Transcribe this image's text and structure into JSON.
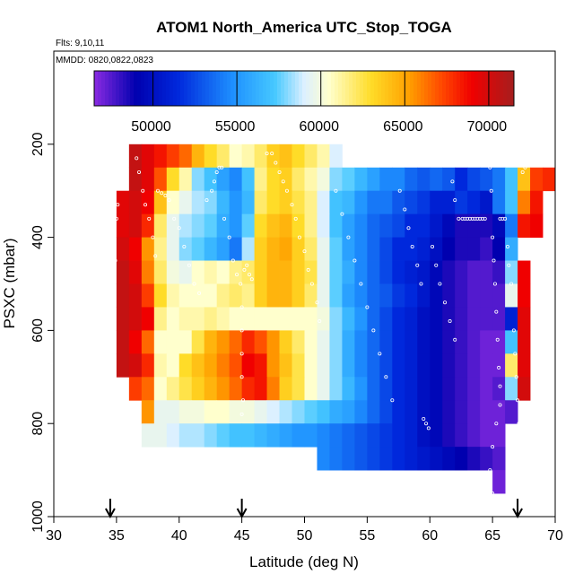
{
  "chart_data": {
    "type": "heatmap",
    "title": "ATOM1 North_America UTC_Stop_TOGA",
    "annotations": [
      "Flts: 9,10,11",
      "MMDD: 0820,0822,0823"
    ],
    "xlabel": "Latitude (deg N)",
    "ylabel": "PSXC (mbar)",
    "xlim": [
      30,
      70
    ],
    "ylim": [
      1000,
      0
    ],
    "x_ticks": [
      "30",
      "35",
      "40",
      "45",
      "50",
      "55",
      "60",
      "65",
      "70"
    ],
    "y_ticks": [
      "200",
      "400",
      "600",
      "800",
      "1000"
    ],
    "colorbar": {
      "range": [
        46500,
        71500
      ],
      "tick_labels": [
        "50000",
        "55000",
        "60000",
        "65000",
        "70000"
      ],
      "tick_values": [
        50000,
        55000,
        60000,
        65000,
        70000
      ]
    },
    "arrow_latitudes": [
      34.5,
      45,
      67
    ],
    "x_edges": [
      35,
      36,
      37,
      38,
      39,
      40,
      41,
      42,
      43,
      44,
      45,
      46,
      47,
      48,
      49,
      50,
      51,
      52,
      53,
      54,
      55,
      56,
      57,
      58,
      59,
      60,
      61,
      62,
      63,
      64,
      65,
      66,
      67,
      68,
      69,
      70
    ],
    "y_edges": [
      150,
      200,
      250,
      300,
      350,
      400,
      450,
      500,
      550,
      600,
      650,
      700,
      750,
      800,
      850,
      900,
      950,
      1000
    ],
    "grid": [
      [
        null,
        null,
        null,
        null,
        null,
        null,
        null,
        null,
        null,
        null,
        null,
        null,
        null,
        null,
        null,
        null,
        null,
        null,
        null,
        null,
        null,
        null,
        null,
        null,
        null,
        null,
        null,
        null,
        null,
        null,
        null,
        null,
        null,
        null,
        null
      ],
      [
        null,
        70500,
        69500,
        68500,
        67500,
        66500,
        64500,
        63000,
        62000,
        60500,
        61000,
        62000,
        63500,
        64000,
        63000,
        62000,
        61000,
        59000,
        null,
        null,
        null,
        null,
        null,
        null,
        null,
        null,
        null,
        null,
        null,
        null,
        null,
        null,
        null,
        null,
        null
      ],
      [
        null,
        70500,
        69500,
        67000,
        63000,
        61000,
        58000,
        57000,
        55500,
        54500,
        57000,
        61500,
        63000,
        63500,
        62000,
        61000,
        60000,
        58000,
        57500,
        56500,
        55500,
        54500,
        54500,
        53500,
        53000,
        53500,
        53000,
        51500,
        52500,
        53000,
        54000,
        57000,
        64000,
        67500,
        68000
      ],
      [
        69500,
        70000,
        69000,
        64000,
        60500,
        59500,
        58500,
        58000,
        56500,
        55000,
        56500,
        62000,
        63000,
        63500,
        62500,
        61500,
        59000,
        57000,
        56500,
        55000,
        54000,
        54000,
        53000,
        52500,
        52000,
        51000,
        51000,
        52000,
        51500,
        50500,
        54000,
        57000,
        66000,
        68500,
        null
      ],
      [
        69500,
        70000,
        68000,
        62000,
        59500,
        58500,
        58000,
        57500,
        56000,
        55000,
        57500,
        63000,
        64000,
        64500,
        63000,
        61500,
        59000,
        57000,
        55500,
        54500,
        53500,
        53000,
        52500,
        51500,
        51500,
        50500,
        49500,
        48500,
        48500,
        48500,
        49500,
        54000,
        68500,
        69000,
        null
      ],
      [
        70000,
        69000,
        65500,
        61500,
        59500,
        58000,
        57500,
        56500,
        55500,
        54000,
        58500,
        63500,
        64500,
        65000,
        63500,
        62000,
        59500,
        57500,
        55500,
        54500,
        53500,
        52500,
        51500,
        51500,
        51000,
        50000,
        49000,
        48500,
        48500,
        48000,
        49000,
        56000,
        null,
        null,
        null
      ],
      [
        70500,
        69500,
        66000,
        62000,
        60000,
        59500,
        60500,
        61000,
        60500,
        61500,
        62000,
        63500,
        64500,
        64500,
        63500,
        62500,
        59500,
        57500,
        56000,
        54500,
        53500,
        52500,
        51500,
        51000,
        50500,
        49500,
        48500,
        48000,
        47500,
        47500,
        48000,
        58000,
        69000,
        null,
        null
      ],
      [
        70500,
        70000,
        67500,
        63000,
        61000,
        60500,
        60500,
        60500,
        61500,
        62000,
        61500,
        63500,
        64500,
        64500,
        63500,
        62000,
        59500,
        57500,
        55500,
        54500,
        53500,
        53000,
        52000,
        51500,
        50500,
        49500,
        48500,
        48000,
        47500,
        47500,
        47500,
        59500,
        69000,
        null,
        null
      ],
      [
        70500,
        70000,
        69000,
        61500,
        60500,
        61000,
        61000,
        61500,
        61000,
        60500,
        60500,
        60500,
        60500,
        60500,
        60500,
        60500,
        60000,
        58000,
        56500,
        55000,
        53500,
        52500,
        51500,
        51000,
        50000,
        49500,
        48500,
        48000,
        47500,
        47500,
        47500,
        51000,
        69500,
        null,
        null
      ],
      [
        70500,
        69000,
        66500,
        60500,
        60500,
        60500,
        62500,
        64500,
        65500,
        66500,
        68000,
        67000,
        65500,
        63500,
        62000,
        60500,
        59500,
        58000,
        56000,
        54500,
        53500,
        52500,
        51500,
        51000,
        50000,
        49500,
        48500,
        48000,
        47500,
        47000,
        47000,
        57000,
        69500,
        null,
        null
      ],
      [
        70500,
        70000,
        68000,
        61000,
        60500,
        63000,
        64000,
        65000,
        66000,
        67000,
        69000,
        68500,
        65500,
        64000,
        62500,
        60500,
        59500,
        58000,
        56000,
        54500,
        53500,
        52500,
        51500,
        51000,
        50000,
        49500,
        48500,
        48000,
        47500,
        47000,
        47000,
        62000,
        69500,
        null,
        null
      ],
      [
        null,
        67500,
        66500,
        60500,
        61500,
        62500,
        63500,
        64500,
        65500,
        66500,
        68000,
        68500,
        66000,
        63500,
        62500,
        60500,
        59500,
        58000,
        56500,
        55000,
        53500,
        52500,
        51500,
        51000,
        50000,
        49500,
        48500,
        48000,
        47500,
        47000,
        47500,
        58000,
        70000,
        null,
        null
      ],
      [
        null,
        null,
        65500,
        59500,
        59500,
        60000,
        60000,
        60500,
        60500,
        60000,
        60000,
        59500,
        59000,
        58500,
        58000,
        57500,
        57000,
        56000,
        55500,
        54500,
        53500,
        52500,
        51500,
        51000,
        50000,
        49500,
        48500,
        48000,
        47500,
        47000,
        47000,
        47500,
        null,
        null,
        null
      ],
      [
        null,
        null,
        59500,
        59500,
        59000,
        58500,
        58500,
        58000,
        57500,
        57000,
        57000,
        56500,
        56000,
        55500,
        55000,
        55000,
        54500,
        54000,
        53500,
        53000,
        52500,
        52000,
        51500,
        51000,
        50000,
        49500,
        48500,
        48000,
        47500,
        47000,
        47000,
        null,
        null,
        null,
        null
      ],
      [
        null,
        null,
        null,
        null,
        null,
        null,
        null,
        null,
        null,
        null,
        null,
        null,
        null,
        null,
        null,
        null,
        54500,
        54000,
        53500,
        53000,
        52500,
        52000,
        51500,
        51000,
        50500,
        50000,
        49500,
        49000,
        48500,
        48000,
        47500,
        null,
        null,
        null,
        null
      ],
      [
        null,
        null,
        null,
        null,
        null,
        null,
        null,
        null,
        null,
        null,
        null,
        null,
        null,
        null,
        null,
        null,
        null,
        null,
        null,
        null,
        null,
        null,
        null,
        null,
        null,
        null,
        null,
        null,
        null,
        null,
        47000,
        null,
        null,
        null,
        null
      ],
      [
        null,
        null,
        null,
        null,
        null,
        null,
        null,
        null,
        null,
        null,
        null,
        null,
        null,
        null,
        null,
        null,
        null,
        null,
        null,
        null,
        null,
        null,
        null,
        null,
        null,
        null,
        null,
        null,
        null,
        null,
        null,
        null,
        null,
        null,
        null
      ]
    ],
    "track_points": [
      [
        35.6,
        187
      ],
      [
        36.0,
        187
      ],
      [
        36.4,
        187
      ],
      [
        36.8,
        187
      ],
      [
        35.4,
        210
      ],
      [
        35.3,
        240
      ],
      [
        35.2,
        260
      ],
      [
        35.3,
        290
      ],
      [
        35.1,
        330
      ],
      [
        35.0,
        360
      ],
      [
        34.8,
        400
      ],
      [
        34.9,
        450
      ],
      [
        34.7,
        520
      ],
      [
        34.6,
        580
      ],
      [
        34.7,
        620
      ],
      [
        34.5,
        660
      ],
      [
        34.6,
        700
      ],
      [
        34.6,
        730
      ],
      [
        34.8,
        760
      ],
      [
        36.6,
        230
      ],
      [
        36.8,
        260
      ],
      [
        37.1,
        300
      ],
      [
        37.3,
        330
      ],
      [
        37.6,
        360
      ],
      [
        37.9,
        400
      ],
      [
        38.1,
        440
      ],
      [
        38.3,
        300
      ],
      [
        38.6,
        305
      ],
      [
        38.9,
        310
      ],
      [
        39.2,
        320
      ],
      [
        39.6,
        360
      ],
      [
        40.0,
        380
      ],
      [
        40.4,
        420
      ],
      [
        40.8,
        460
      ],
      [
        41.2,
        500
      ],
      [
        41.6,
        520
      ],
      [
        42.2,
        320
      ],
      [
        42.6,
        300
      ],
      [
        42.8,
        280
      ],
      [
        43.0,
        260
      ],
      [
        43.2,
        250
      ],
      [
        43.4,
        250
      ],
      [
        43.6,
        360
      ],
      [
        44.0,
        400
      ],
      [
        44.3,
        450
      ],
      [
        44.6,
        480
      ],
      [
        44.9,
        500
      ],
      [
        45.0,
        550
      ],
      [
        45.0,
        600
      ],
      [
        45.0,
        650
      ],
      [
        45.0,
        700
      ],
      [
        45.1,
        750
      ],
      [
        45.0,
        780
      ],
      [
        45.2,
        470
      ],
      [
        45.4,
        460
      ],
      [
        45.6,
        480
      ],
      [
        45.8,
        490
      ],
      [
        47.0,
        220
      ],
      [
        47.4,
        220
      ],
      [
        47.7,
        240
      ],
      [
        48.0,
        260
      ],
      [
        48.3,
        280
      ],
      [
        48.6,
        300
      ],
      [
        49.0,
        330
      ],
      [
        49.3,
        360
      ],
      [
        49.6,
        400
      ],
      [
        50.0,
        430
      ],
      [
        50.3,
        470
      ],
      [
        50.6,
        500
      ],
      [
        51.0,
        540
      ],
      [
        51.2,
        580
      ],
      [
        52.5,
        300
      ],
      [
        53.0,
        350
      ],
      [
        53.5,
        400
      ],
      [
        54.0,
        450
      ],
      [
        54.5,
        500
      ],
      [
        55.0,
        550
      ],
      [
        55.5,
        600
      ],
      [
        56.0,
        650
      ],
      [
        56.5,
        700
      ],
      [
        57.0,
        750
      ],
      [
        56.3,
        230
      ],
      [
        56.5,
        230
      ],
      [
        56.7,
        230
      ],
      [
        56.9,
        230
      ],
      [
        57.1,
        230
      ],
      [
        57.3,
        240
      ],
      [
        57.6,
        300
      ],
      [
        58.0,
        340
      ],
      [
        58.3,
        380
      ],
      [
        58.6,
        420
      ],
      [
        59.0,
        460
      ],
      [
        59.3,
        500
      ],
      [
        59.5,
        790
      ],
      [
        59.7,
        800
      ],
      [
        59.9,
        810
      ],
      [
        61.0,
        230
      ],
      [
        61.2,
        230
      ],
      [
        61.4,
        230
      ],
      [
        61.6,
        240
      ],
      [
        61.8,
        280
      ],
      [
        62.0,
        320
      ],
      [
        62.3,
        360
      ],
      [
        62.6,
        360
      ],
      [
        62.8,
        360
      ],
      [
        63.0,
        360
      ],
      [
        63.2,
        360
      ],
      [
        63.4,
        360
      ],
      [
        63.6,
        360
      ],
      [
        63.8,
        360
      ],
      [
        64.0,
        360
      ],
      [
        64.2,
        360
      ],
      [
        64.4,
        360
      ],
      [
        60.2,
        420
      ],
      [
        60.5,
        460
      ],
      [
        60.8,
        500
      ],
      [
        61.2,
        540
      ],
      [
        61.6,
        580
      ],
      [
        62.0,
        620
      ],
      [
        64.8,
        250
      ],
      [
        64.9,
        300
      ],
      [
        65.0,
        400
      ],
      [
        65.1,
        450
      ],
      [
        65.2,
        500
      ],
      [
        65.3,
        560
      ],
      [
        65.4,
        620
      ],
      [
        65.5,
        680
      ],
      [
        65.6,
        720
      ],
      [
        65.6,
        760
      ],
      [
        65.3,
        800
      ],
      [
        65.0,
        850
      ],
      [
        64.8,
        900
      ],
      [
        64.7,
        950
      ],
      [
        65.0,
        950
      ],
      [
        65.6,
        360
      ],
      [
        65.8,
        360
      ],
      [
        66.0,
        360
      ],
      [
        66.2,
        420
      ],
      [
        66.3,
        460
      ],
      [
        66.5,
        500
      ],
      [
        66.7,
        600
      ],
      [
        66.8,
        650
      ],
      [
        66.9,
        700
      ],
      [
        67.0,
        750
      ],
      [
        67.1,
        800
      ],
      [
        67.4,
        260
      ],
      [
        67.6,
        250
      ],
      [
        67.8,
        240
      ],
      [
        68.0,
        240
      ],
      [
        68.2,
        230
      ],
      [
        68.4,
        220
      ],
      [
        68.6,
        220
      ],
      [
        68.8,
        220
      ],
      [
        69.0,
        220
      ]
    ]
  }
}
